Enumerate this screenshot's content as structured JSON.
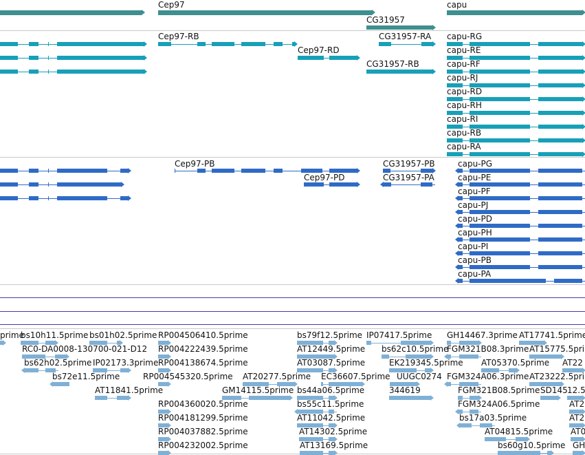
{
  "colors": {
    "gene": "#3f8f8f",
    "transcript": "#17a0b8",
    "protein": "#2f6bc6",
    "est": "#7fb0d6",
    "divider": "#c8c8c8",
    "rule": "#4a3aa0"
  },
  "tracks": {
    "genes": [
      {
        "id": "g0",
        "label": ""
      },
      {
        "id": "g1",
        "label": "Cep97"
      },
      {
        "id": "g2",
        "label": "CG31957"
      },
      {
        "id": "g3",
        "label": "capu"
      }
    ],
    "transcripts": [
      {
        "id": "t0",
        "label": ""
      },
      {
        "id": "t1",
        "label": ""
      },
      {
        "id": "t2",
        "label": ""
      },
      {
        "id": "t3",
        "label": "Cep97-RB"
      },
      {
        "id": "t4",
        "label": "Cep97-RD"
      },
      {
        "id": "t5",
        "label": "CG31957-RA"
      },
      {
        "id": "t6",
        "label": "CG31957-RB"
      },
      {
        "id": "t7",
        "label": "capu-RG"
      },
      {
        "id": "t8",
        "label": "capu-RE"
      },
      {
        "id": "t9",
        "label": "capu-RF"
      },
      {
        "id": "t10",
        "label": "capu-RJ"
      },
      {
        "id": "t11",
        "label": "capu-RD"
      },
      {
        "id": "t12",
        "label": "capu-RH"
      },
      {
        "id": "t13",
        "label": "capu-RI"
      },
      {
        "id": "t14",
        "label": "capu-RB"
      },
      {
        "id": "t15",
        "label": "capu-RA"
      }
    ],
    "proteins": [
      {
        "id": "p0",
        "label": ""
      },
      {
        "id": "p1",
        "label": ""
      },
      {
        "id": "p2",
        "label": ""
      },
      {
        "id": "p3",
        "label": "Cep97-PB"
      },
      {
        "id": "p4",
        "label": "Cep97-PD"
      },
      {
        "id": "p5",
        "label": "CG31957-PB"
      },
      {
        "id": "p6",
        "label": "CG31957-PA"
      },
      {
        "id": "p7",
        "label": "capu-PG"
      },
      {
        "id": "p8",
        "label": "capu-PE"
      },
      {
        "id": "p9",
        "label": "capu-PF"
      },
      {
        "id": "p10",
        "label": "capu-PJ"
      },
      {
        "id": "p11",
        "label": "capu-PD"
      },
      {
        "id": "p12",
        "label": "capu-PH"
      },
      {
        "id": "p13",
        "label": "capu-PI"
      },
      {
        "id": "p14",
        "label": "capu-PB"
      },
      {
        "id": "p15",
        "label": "capu-PA"
      }
    ],
    "ests": [
      {
        "id": "e0",
        "label": "prime"
      },
      {
        "id": "e1",
        "label": "bs10h11.5prime"
      },
      {
        "id": "e2",
        "label": "bs01h02.5prime"
      },
      {
        "id": "e3",
        "label": "RP004506410.5prime"
      },
      {
        "id": "e4",
        "label": "bs79f12.5prime"
      },
      {
        "id": "e5",
        "label": "IP07417.5prime"
      },
      {
        "id": "e6",
        "label": "GH14467.3prime"
      },
      {
        "id": "e7",
        "label": "AT17741.5prime"
      },
      {
        "id": "e8",
        "label": "RC0-DA0008-130700-021-D12"
      },
      {
        "id": "e9",
        "label": "RP004222439.5prime"
      },
      {
        "id": "e10",
        "label": "AT12449.5prime"
      },
      {
        "id": "e11",
        "label": "bs62c10.5prime"
      },
      {
        "id": "e12",
        "label": "FGM321B08.3prime"
      },
      {
        "id": "e13",
        "label": "AT15775.5prime"
      },
      {
        "id": "e14",
        "label": "bs62h02.5prime"
      },
      {
        "id": "e15",
        "label": "IP02173.3prime"
      },
      {
        "id": "e16",
        "label": "RP004138674.5prime"
      },
      {
        "id": "e17",
        "label": "AT03087.5prime"
      },
      {
        "id": "e18",
        "label": "EK219345.5prime"
      },
      {
        "id": "e19",
        "label": "AT05370.5prime"
      },
      {
        "id": "e20",
        "label": "AT22"
      },
      {
        "id": "e21",
        "label": "bs72e11.5prime"
      },
      {
        "id": "e22",
        "label": "RP004545320.5prime"
      },
      {
        "id": "e23",
        "label": "AT20277.5prime"
      },
      {
        "id": "e24",
        "label": "EC36607.5prime"
      },
      {
        "id": "e25",
        "label": "UUGC0274"
      },
      {
        "id": "e26",
        "label": "FGM324A06.3prime"
      },
      {
        "id": "e27",
        "label": "AT23222.5prime"
      },
      {
        "id": "e28",
        "label": "AT11841.5prime"
      },
      {
        "id": "e29",
        "label": "GM14115.5prime"
      },
      {
        "id": "e30",
        "label": "bs44a06.5prime"
      },
      {
        "id": "e31",
        "label": "344619"
      },
      {
        "id": "e32",
        "label": "FGM321B08.5prime"
      },
      {
        "id": "e33",
        "label": "SD145"
      },
      {
        "id": "e34",
        "label": "12.5"
      },
      {
        "id": "e35",
        "label": "RP004360020.5prime"
      },
      {
        "id": "e36",
        "label": "bs55c11.5prime"
      },
      {
        "id": "e37",
        "label": "FGM324A06.5prime"
      },
      {
        "id": "e38",
        "label": "AT2"
      },
      {
        "id": "e39",
        "label": "RP004181299.5prime"
      },
      {
        "id": "e40",
        "label": "AT11042.5prime"
      },
      {
        "id": "e41",
        "label": "bs17a03.5prime"
      },
      {
        "id": "e42",
        "label": "AT2"
      },
      {
        "id": "e43",
        "label": "RP004037882.5prime"
      },
      {
        "id": "e44",
        "label": "AT14302.5prime"
      },
      {
        "id": "e45",
        "label": "AT04815.5prime"
      },
      {
        "id": "e46",
        "label": "AT0"
      },
      {
        "id": "e47",
        "label": "RP004232002.5prime"
      },
      {
        "id": "e48",
        "label": "AT13169.5prime"
      },
      {
        "id": "e49",
        "label": "bs60g10.5prime"
      },
      {
        "id": "e50",
        "label": "GH"
      }
    ]
  }
}
